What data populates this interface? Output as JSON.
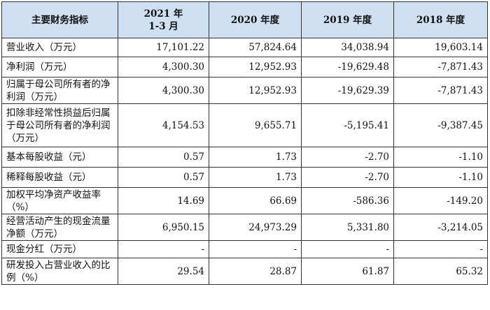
{
  "header": {
    "label_col": "主要财务指标",
    "periods": [
      {
        "line1": "2021 年",
        "line2": "1-3 月"
      },
      {
        "line1": "2020 年度",
        "line2": ""
      },
      {
        "line1": "2019 年度",
        "line2": ""
      },
      {
        "line1": "2018 年度",
        "line2": ""
      }
    ]
  },
  "rows": [
    {
      "label": "营业收入（万元）",
      "values": [
        "17,101.22",
        "57,824.64",
        "34,038.94",
        "19,603.14"
      ]
    },
    {
      "label": "净利润（万元）",
      "values": [
        "4,300.30",
        "12,952.93",
        "-19,629.48",
        "-7,871.43"
      ]
    },
    {
      "label": "归属于母公司所有者的净利润（万元）",
      "values": [
        "4,300.30",
        "12,952.93",
        "-19,629.39",
        "-7,871.43"
      ]
    },
    {
      "label": "扣除非经常性损益后归属于母公司所有者的净利润（万元）",
      "values": [
        "4,154.53",
        "9,655.71",
        "-5,195.41",
        "-9,387.45"
      ]
    },
    {
      "label": "基本每股收益（元）",
      "values": [
        "0.57",
        "1.73",
        "-2.70",
        "-1.10"
      ]
    },
    {
      "label": "稀释每股收益（元）",
      "values": [
        "0.57",
        "1.73",
        "-2.70",
        "-1.10"
      ]
    },
    {
      "label": "加权平均净资产收益率（%）",
      "values": [
        "14.69",
        "66.69",
        "-586.36",
        "-149.20"
      ]
    },
    {
      "label": "经营活动产生的现金流量净额（万元）",
      "values": [
        "6,950.15",
        "24,973.29",
        "5,331.80",
        "-3,214.05"
      ]
    },
    {
      "label": "现金分红（万元）",
      "values": [
        "-",
        "-",
        "-",
        "-"
      ]
    },
    {
      "label": "研发投入占营业收入的比例（%）",
      "values": [
        "29.54",
        "28.87",
        "61.87",
        "65.32"
      ]
    }
  ]
}
